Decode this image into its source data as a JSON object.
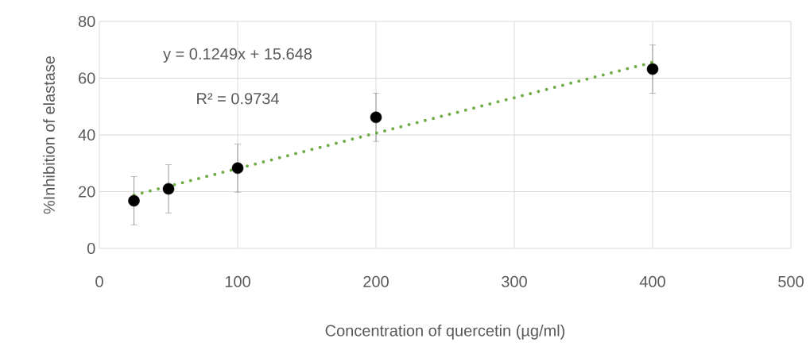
{
  "chart_data": {
    "type": "scatter",
    "xlabel": "Concentration of quercetin (µg/ml)",
    "ylabel": "%Inhibition of elastase",
    "xlim": [
      0,
      500
    ],
    "xticks": [
      0,
      100,
      200,
      300,
      400,
      500
    ],
    "ylim": [
      0,
      80
    ],
    "yticks": [
      0,
      20,
      40,
      60,
      80
    ],
    "grid": true,
    "marker": "circle",
    "annotations": [
      "y = 0.1249x + 15.648",
      "R² = 0.9734"
    ],
    "series": [
      {
        "color": "#000000",
        "x": [
          25,
          50,
          100,
          200,
          400
        ],
        "values": [
          16.8,
          21,
          28.3,
          46.2,
          63.2
        ],
        "errors": [
          8.5,
          8.5,
          8.5,
          8.5,
          8.5
        ]
      },
      {
        "type": "line",
        "color": "#70ad47",
        "line_style": "dotted",
        "marker": "none",
        "x": [
          25,
          400
        ],
        "values": [
          18.8,
          65.6
        ]
      }
    ]
  }
}
